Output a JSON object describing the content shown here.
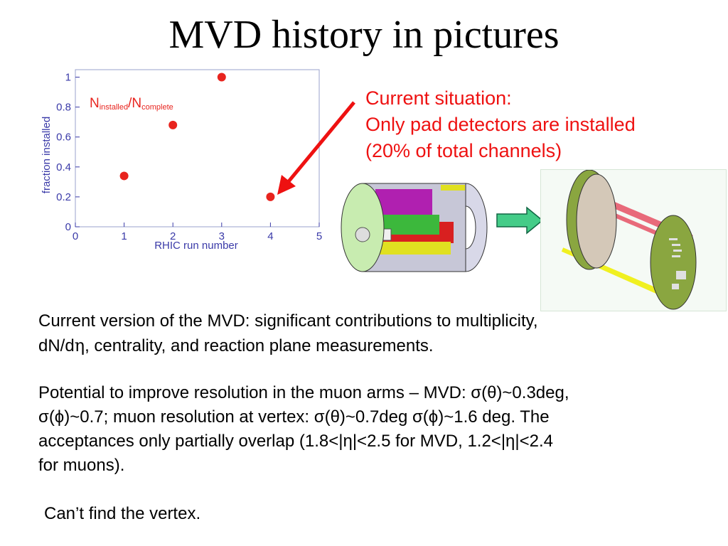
{
  "slide": {
    "title": "MVD history in pictures"
  },
  "callout": {
    "line1": "Current situation:",
    "line2": "Only pad detectors are installed",
    "line3": "(20% of total channels)",
    "color": "#ee1111"
  },
  "paragraph1": {
    "text_a": "Current version of the MVD: significant contributions to multiplicity,",
    "text_b": "dN/d",
    "eta": "η",
    "text_c": ", centrality, and reaction plane measurements."
  },
  "paragraph2": {
    "lines": [
      "Potential to improve resolution in the muon arms – MVD: σ(θ)~0.3deg,",
      "σ(ϕ)~0.7; muon resolution at vertex: σ(θ)~0.7deg σ(ϕ)~1.6 deg. The",
      "acceptances only partially overlap (1.8<|η|<2.5 for MVD, 1.2<|η|<2.4",
      "for muons)."
    ]
  },
  "paragraph3": {
    "text": "Can’t find the vertex."
  },
  "chart_data": {
    "type": "scatter",
    "x": [
      1,
      2,
      3,
      4
    ],
    "y": [
      0.34,
      0.68,
      1.0,
      0.2
    ],
    "xlim": [
      0,
      5
    ],
    "ylim": [
      0,
      1.05
    ],
    "xticks": [
      "0",
      "1",
      "2",
      "3",
      "4",
      "5"
    ],
    "yticks": [
      "0",
      "0.2",
      "0.4",
      "0.6",
      "0.8",
      "1"
    ],
    "ytick_values": [
      0,
      0.2,
      0.4,
      0.6,
      0.8,
      1.0
    ],
    "xlabel": "RHIC run number",
    "ylabel": "fraction installed",
    "annotation": {
      "n1": "N",
      "sub1": "installed",
      "slash": "/",
      "n2": "N",
      "sub2": "complete"
    },
    "point_color": "#e8241e",
    "axis_color": "#3a3aa8",
    "annotation_color": "#e8241e"
  },
  "colors": {
    "arrow_red": "#ee1111",
    "arrow_green": "#44cc88"
  }
}
